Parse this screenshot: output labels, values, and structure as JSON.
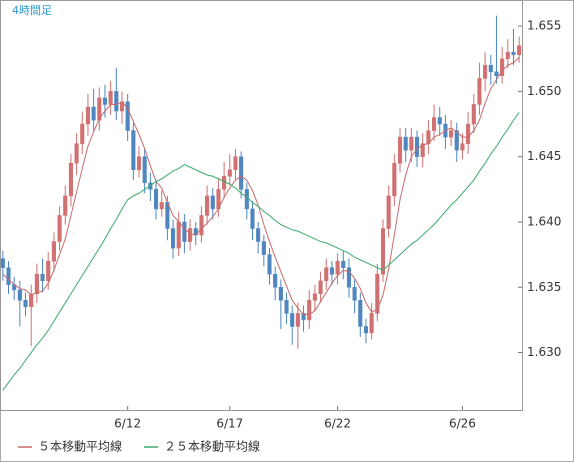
{
  "chart_data": {
    "type": "candlestick",
    "title": "4時間足",
    "categories": [
      null,
      null,
      null,
      null,
      null,
      null,
      null,
      null,
      null,
      null,
      null,
      null,
      null,
      null,
      null,
      null,
      null,
      null,
      null,
      null,
      null,
      null,
      "6/12",
      null,
      null,
      null,
      null,
      null,
      null,
      null,
      null,
      null,
      null,
      null,
      null,
      null,
      null,
      null,
      null,
      null,
      "6/17",
      null,
      null,
      null,
      null,
      null,
      null,
      null,
      null,
      null,
      null,
      null,
      null,
      null,
      null,
      null,
      null,
      null,
      null,
      "6/22",
      null,
      null,
      null,
      null,
      null,
      null,
      null,
      null,
      null,
      null,
      null,
      null,
      null,
      null,
      null,
      null,
      null,
      null,
      null,
      null,
      null,
      "6/26",
      null,
      null,
      null,
      null,
      null,
      null,
      null,
      null,
      null,
      null
    ],
    "open": [
      1.6372,
      1.6365,
      1.6352,
      1.6348,
      1.634,
      1.6335,
      1.6345,
      1.636,
      1.6355,
      1.637,
      1.6385,
      1.6405,
      1.642,
      1.6445,
      1.646,
      1.6475,
      1.6488,
      1.6478,
      1.6495,
      1.649,
      1.65,
      1.6485,
      1.6492,
      1.647,
      1.644,
      1.645,
      1.643,
      1.6425,
      1.641,
      1.6415,
      1.6395,
      1.638,
      1.64,
      1.6385,
      1.6395,
      1.639,
      1.6405,
      1.642,
      1.641,
      1.6425,
      1.6435,
      1.644,
      1.645,
      1.6425,
      1.641,
      1.6395,
      1.6385,
      1.6375,
      1.636,
      1.635,
      1.634,
      1.633,
      1.632,
      1.633,
      1.6325,
      1.634,
      1.6345,
      1.6355,
      1.6365,
      1.636,
      1.637,
      1.6365,
      1.635,
      1.634,
      1.632,
      1.6315,
      1.633,
      1.636,
      1.6395,
      1.642,
      1.6445,
      1.6465,
      1.6455,
      1.6465,
      1.645,
      1.646,
      1.647,
      1.648,
      1.6475,
      1.6465,
      1.647,
      1.6455,
      1.646,
      1.6475,
      1.649,
      1.651,
      1.652,
      1.6515,
      1.6512,
      1.6525,
      1.653,
      1.6528
    ],
    "high": [
      1.6378,
      1.637,
      1.6358,
      1.6355,
      1.6346,
      1.6352,
      1.6368,
      1.6372,
      1.6377,
      1.6392,
      1.6412,
      1.6428,
      1.6452,
      1.6468,
      1.6484,
      1.6498,
      1.6502,
      1.6503,
      1.6505,
      1.6508,
      1.6518,
      1.65,
      1.6498,
      1.6476,
      1.6458,
      1.6456,
      1.6438,
      1.6432,
      1.6424,
      1.642,
      1.6402,
      1.6408,
      1.6406,
      1.6402,
      1.64,
      1.6412,
      1.6428,
      1.6426,
      1.6434,
      1.6446,
      1.6452,
      1.6456,
      1.6454,
      1.643,
      1.6416,
      1.64,
      1.639,
      1.638,
      1.6366,
      1.6356,
      1.6346,
      1.6336,
      1.6338,
      1.6336,
      1.6348,
      1.6352,
      1.6362,
      1.6372,
      1.637,
      1.6376,
      1.6378,
      1.6372,
      1.6356,
      1.6346,
      1.6326,
      1.6338,
      1.6368,
      1.6402,
      1.6428,
      1.6452,
      1.6472,
      1.6472,
      1.6472,
      1.647,
      1.6468,
      1.6478,
      1.649,
      1.6488,
      1.6482,
      1.6478,
      1.6476,
      1.6468,
      1.6484,
      1.6498,
      1.6522,
      1.653,
      1.6528,
      1.6558,
      1.6534,
      1.654,
      1.6548,
      1.6542
    ],
    "low": [
      1.6355,
      1.6345,
      1.634,
      1.632,
      1.6328,
      1.6305,
      1.6338,
      1.6346,
      1.6348,
      1.6362,
      1.6378,
      1.6398,
      1.6412,
      1.6436,
      1.6452,
      1.6466,
      1.647,
      1.647,
      1.648,
      1.6482,
      1.6478,
      1.6475,
      1.6462,
      1.6432,
      1.6434,
      1.6422,
      1.6416,
      1.6402,
      1.6404,
      1.6386,
      1.6372,
      1.6374,
      1.6376,
      1.6378,
      1.6382,
      1.6384,
      1.6398,
      1.6402,
      1.6404,
      1.6418,
      1.6428,
      1.6432,
      1.6418,
      1.6402,
      1.6386,
      1.6376,
      1.6366,
      1.6352,
      1.634,
      1.6318,
      1.6322,
      1.6306,
      1.6303,
      1.6316,
      1.6318,
      1.6332,
      1.6338,
      1.6348,
      1.6352,
      1.6352,
      1.6356,
      1.6342,
      1.633,
      1.6312,
      1.6307,
      1.631,
      1.6324,
      1.6354,
      1.6388,
      1.6412,
      1.6438,
      1.6446,
      1.6446,
      1.6442,
      1.6442,
      1.6452,
      1.6462,
      1.6466,
      1.6456,
      1.6458,
      1.6446,
      1.6448,
      1.6452,
      1.6468,
      1.6482,
      1.65,
      1.6505,
      1.6506,
      1.6506,
      1.6518,
      1.652,
      1.6522
    ],
    "close": [
      1.6365,
      1.6352,
      1.6348,
      1.634,
      1.6335,
      1.6345,
      1.636,
      1.6355,
      1.637,
      1.6385,
      1.6405,
      1.642,
      1.6445,
      1.646,
      1.6475,
      1.6488,
      1.6478,
      1.6495,
      1.649,
      1.65,
      1.6485,
      1.6492,
      1.647,
      1.644,
      1.645,
      1.643,
      1.6425,
      1.641,
      1.6415,
      1.6395,
      1.638,
      1.64,
      1.6385,
      1.6395,
      1.639,
      1.6405,
      1.642,
      1.641,
      1.6425,
      1.6435,
      1.644,
      1.645,
      1.6425,
      1.641,
      1.6395,
      1.6385,
      1.6375,
      1.636,
      1.635,
      1.634,
      1.633,
      1.632,
      1.633,
      1.6325,
      1.634,
      1.6345,
      1.6355,
      1.6365,
      1.636,
      1.637,
      1.6365,
      1.635,
      1.634,
      1.632,
      1.6315,
      1.633,
      1.636,
      1.6395,
      1.642,
      1.6445,
      1.6465,
      1.6455,
      1.6465,
      1.645,
      1.646,
      1.647,
      1.648,
      1.6475,
      1.6465,
      1.647,
      1.6455,
      1.646,
      1.6475,
      1.649,
      1.651,
      1.652,
      1.6515,
      1.6512,
      1.6525,
      1.653,
      1.6528,
      1.6535
    ],
    "up_color": "#d07070",
    "down_color": "#4f86c0",
    "series": [
      {
        "name": "５本移動平均線",
        "color": "#c86a6a",
        "values": [
          1.636,
          1.6356,
          1.6352,
          1.6349,
          1.6348,
          1.6344,
          1.6346,
          1.6347,
          1.6353,
          1.6363,
          1.6375,
          1.6387,
          1.6405,
          1.6423,
          1.6441,
          1.6458,
          1.6469,
          1.6479,
          1.6485,
          1.649,
          1.649,
          1.6492,
          1.6487,
          1.6477,
          1.6467,
          1.6456,
          1.6443,
          1.6431,
          1.6426,
          1.6415,
          1.6405,
          1.64,
          1.6395,
          1.6391,
          1.639,
          1.6395,
          1.6399,
          1.6404,
          1.641,
          1.6419,
          1.6426,
          1.6432,
          1.6435,
          1.6432,
          1.6424,
          1.6413,
          1.6398,
          1.6385,
          1.6373,
          1.6362,
          1.6351,
          1.634,
          1.6334,
          1.6329,
          1.6329,
          1.6332,
          1.6339,
          1.6346,
          1.6353,
          1.6359,
          1.6363,
          1.6362,
          1.6357,
          1.6349,
          1.6338,
          1.6331,
          1.6333,
          1.6344,
          1.6364,
          1.639,
          1.6417,
          1.6436,
          1.645,
          1.6456,
          1.6459,
          1.646,
          1.6465,
          1.6467,
          1.647,
          1.6472,
          1.6469,
          1.6465,
          1.6465,
          1.647,
          1.6478,
          1.6491,
          1.6502,
          1.6509,
          1.6516,
          1.652,
          1.6522,
          1.6526
        ]
      },
      {
        "name": "２５本移動平均線",
        "color": "#3aaa6a",
        "values": [
          1.6271,
          1.6277,
          1.6283,
          1.6288,
          1.6294,
          1.63,
          1.6306,
          1.6311,
          1.6317,
          1.6324,
          1.6331,
          1.6338,
          1.6345,
          1.6352,
          1.6359,
          1.6366,
          1.6373,
          1.638,
          1.6387,
          1.6395,
          1.6402,
          1.641,
          1.6417,
          1.642,
          1.6422,
          1.6425,
          1.6428,
          1.6431,
          1.6433,
          1.6436,
          1.6439,
          1.6441,
          1.6444,
          1.6442,
          1.644,
          1.6438,
          1.6436,
          1.6435,
          1.6433,
          1.6431,
          1.6429,
          1.6426,
          1.6422,
          1.6419,
          1.6415,
          1.6412,
          1.6408,
          1.6405,
          1.6401,
          1.6398,
          1.6396,
          1.6394,
          1.6393,
          1.6391,
          1.6389,
          1.6387,
          1.6385,
          1.6384,
          1.6382,
          1.638,
          1.6378,
          1.6376,
          1.6373,
          1.6371,
          1.6369,
          1.6367,
          1.6365,
          1.6363,
          1.6367,
          1.6371,
          1.6375,
          1.6379,
          1.6383,
          1.6386,
          1.639,
          1.6394,
          1.6398,
          1.6403,
          1.6408,
          1.6413,
          1.6417,
          1.6422,
          1.6427,
          1.6432,
          1.6439,
          1.6445,
          1.6452,
          1.6458,
          1.6465,
          1.6471,
          1.6478,
          1.6484
        ]
      }
    ],
    "ylim": [
      1.6256,
      1.657
    ],
    "yticks": [
      {
        "value": 1.63,
        "label": "1.630"
      },
      1.635,
      {
        "value": 1.64,
        "label": "1.640"
      },
      1.645,
      {
        "value": 1.65,
        "label": "1.650"
      },
      1.655
    ],
    "grid": false,
    "legend": "bottom"
  }
}
